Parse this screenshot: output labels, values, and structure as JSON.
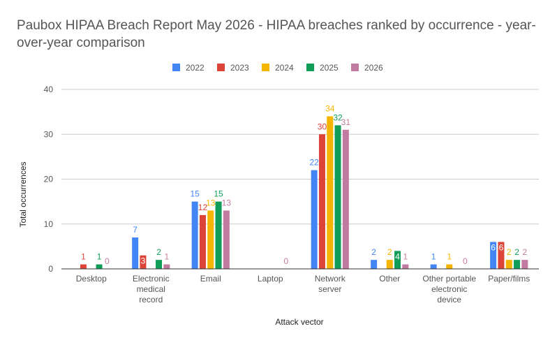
{
  "chart_data": {
    "type": "bar",
    "title": "Paubox HIPAA Breach Report May 2026 - HIPAA breaches ranked by occurrence - year-over-year comparison",
    "xlabel": "Attack vector",
    "ylabel": "Total occurrences",
    "ylim": [
      0,
      40
    ],
    "yticks": [
      "0",
      "10",
      "20",
      "30",
      "40"
    ],
    "legend_position": "top",
    "grid": true,
    "categories": [
      [
        "Desktop"
      ],
      [
        "Electronic",
        "medical",
        "record"
      ],
      [
        "Email"
      ],
      [
        "Laptop"
      ],
      [
        "Network",
        "server"
      ],
      [
        "Other"
      ],
      [
        "Other portable",
        "electronic",
        "device"
      ],
      [
        "Paper/films"
      ]
    ],
    "series": [
      {
        "name": "2022",
        "color": "#4285f4",
        "values": [
          0,
          7,
          15,
          0,
          22,
          2,
          1,
          6
        ]
      },
      {
        "name": "2023",
        "color": "#db4437",
        "values": [
          1,
          3,
          12,
          0,
          30,
          0,
          0,
          6
        ]
      },
      {
        "name": "2024",
        "color": "#f4b400",
        "values": [
          0,
          0,
          13,
          0,
          34,
          2,
          1,
          2
        ]
      },
      {
        "name": "2025",
        "color": "#0f9d58",
        "values": [
          1,
          2,
          15,
          0,
          32,
          4,
          0,
          2
        ]
      },
      {
        "name": "2026",
        "color": "#c27ba0",
        "values": [
          0,
          1,
          13,
          0,
          31,
          1,
          0,
          2
        ]
      }
    ],
    "data_labels": [
      [
        "",
        "7",
        "15",
        "",
        "22",
        "2",
        "1",
        "6"
      ],
      [
        "1",
        "3",
        "12",
        "",
        "30",
        "",
        "",
        "6"
      ],
      [
        "",
        "",
        "13",
        "",
        "34",
        "2",
        "1",
        "2"
      ],
      [
        "1",
        "2",
        "15",
        "",
        "32",
        "4",
        "",
        "2"
      ],
      [
        "0",
        "1",
        "13",
        "0",
        "31",
        "1",
        "0",
        "2"
      ]
    ],
    "inside_labels": [
      [
        false,
        false,
        false,
        false,
        false,
        false,
        false,
        true
      ],
      [
        false,
        true,
        false,
        false,
        false,
        false,
        false,
        true
      ],
      [
        false,
        false,
        false,
        false,
        false,
        false,
        false,
        false
      ],
      [
        false,
        false,
        false,
        false,
        false,
        true,
        false,
        false
      ],
      [
        false,
        false,
        false,
        false,
        false,
        false,
        false,
        false
      ]
    ],
    "colors": {
      "grid": "#cccccc",
      "axis_text": "#555555",
      "axis_title": "#222222",
      "baseline": "#333333"
    }
  }
}
